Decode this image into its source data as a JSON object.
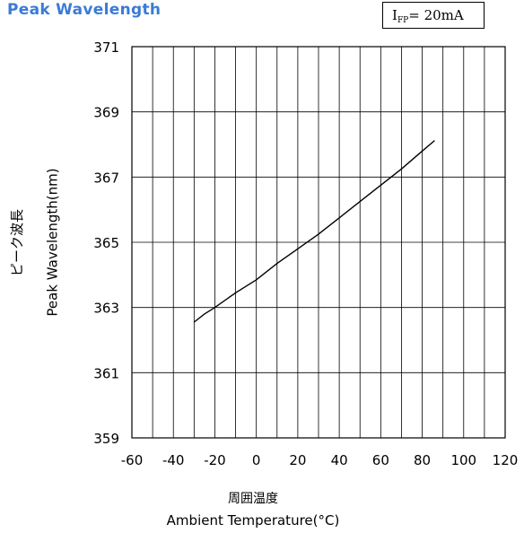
{
  "header": {
    "title": "Peak Wavelength",
    "title_color": "#3a7bd5",
    "condition_prefix": "I",
    "condition_sub": "FP",
    "condition_suffix": "= 20mA"
  },
  "chart_data": {
    "type": "line",
    "title": "Peak Wavelength",
    "xlabel_ja": "周囲温度",
    "xlabel": "Ambient Temperature(°C)",
    "ylabel_ja": "ピーク波長",
    "ylabel": "Peak Wavelength(nm)",
    "xlim": [
      -60,
      120
    ],
    "ylim": [
      359,
      371
    ],
    "x_ticks": [
      -60,
      -40,
      -20,
      0,
      20,
      40,
      60,
      80,
      100,
      120
    ],
    "y_ticks": [
      359,
      361,
      363,
      365,
      367,
      369,
      371
    ],
    "grid": true,
    "series": [
      {
        "x": [
          -30,
          -25,
          -20,
          -10,
          0,
          10,
          20,
          30,
          40,
          50,
          60,
          70,
          80,
          86
        ],
        "y": [
          362.55,
          362.8,
          363.0,
          363.45,
          363.85,
          364.35,
          364.8,
          365.25,
          365.75,
          366.25,
          366.75,
          367.25,
          367.8,
          368.12
        ]
      }
    ]
  }
}
